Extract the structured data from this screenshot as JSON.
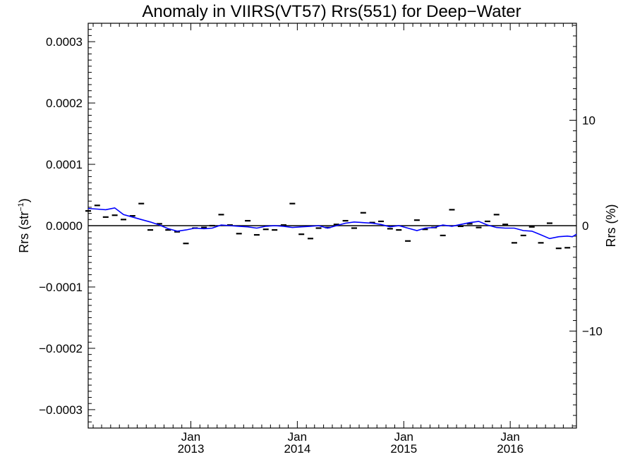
{
  "chart_data": {
    "type": "scatter",
    "title": "Anomaly in VIIRS(VT57) Rrs(551) for Deep−Water",
    "ylabel_left": "Rrs (str",
    "ylabel_left_sup": "−1",
    "ylabel_left_close": ")",
    "ylabel_right": "Rrs (%)",
    "ylim_left": [
      -0.00033,
      0.00033
    ],
    "ylim_right": [
      -19.2,
      19.2
    ],
    "xlim": [
      "2012-01-15",
      "2016-08-15"
    ],
    "left_ticks": [
      {
        "value": 0.0003,
        "label": "0.0003"
      },
      {
        "value": 0.0002,
        "label": "0.0002"
      },
      {
        "value": 0.0001,
        "label": "0.0001"
      },
      {
        "value": 0.0,
        "label": "0.0000"
      },
      {
        "value": -0.0001,
        "label": "−0.0001"
      },
      {
        "value": -0.0002,
        "label": "−0.0002"
      },
      {
        "value": -0.0003,
        "label": "−0.0003"
      }
    ],
    "right_ticks": [
      {
        "value": 10,
        "label": "10"
      },
      {
        "value": 0,
        "label": "0"
      },
      {
        "value": -10,
        "label": "−10"
      }
    ],
    "x_ticks": [
      {
        "date": "2013-01-01",
        "month": "Jan",
        "year": "2013"
      },
      {
        "date": "2014-01-01",
        "month": "Jan",
        "year": "2014"
      },
      {
        "date": "2015-01-01",
        "month": "Jan",
        "year": "2015"
      },
      {
        "date": "2016-01-01",
        "month": "Jan",
        "year": "2016"
      }
    ],
    "zero_line": 0,
    "colors": {
      "points": "#000000",
      "trend": "#0000ff",
      "axes": "#000000"
    },
    "points": [
      {
        "x": "2012-01-15",
        "y": 2.4e-05
      },
      {
        "x": "2012-02-15",
        "y": 3.3e-05
      },
      {
        "x": "2012-03-15",
        "y": 1.4e-05
      },
      {
        "x": "2012-04-15",
        "y": 1.7e-05
      },
      {
        "x": "2012-05-15",
        "y": 1e-05
      },
      {
        "x": "2012-06-15",
        "y": 1.6e-05
      },
      {
        "x": "2012-07-15",
        "y": 3.6e-05
      },
      {
        "x": "2012-08-15",
        "y": -7e-06
      },
      {
        "x": "2012-09-15",
        "y": 3e-06
      },
      {
        "x": "2012-10-15",
        "y": -7e-06
      },
      {
        "x": "2012-11-15",
        "y": -1e-05
      },
      {
        "x": "2012-12-15",
        "y": -2.9e-05
      },
      {
        "x": "2013-01-15",
        "y": -4e-06
      },
      {
        "x": "2013-02-15",
        "y": -3e-06
      },
      {
        "x": "2013-03-15",
        "y": 0.0
      },
      {
        "x": "2013-04-15",
        "y": 1.8e-05
      },
      {
        "x": "2013-05-15",
        "y": 1e-06
      },
      {
        "x": "2013-06-15",
        "y": -1.3e-05
      },
      {
        "x": "2013-07-15",
        "y": 8e-06
      },
      {
        "x": "2013-08-15",
        "y": -1.5e-05
      },
      {
        "x": "2013-09-15",
        "y": -6e-06
      },
      {
        "x": "2013-10-15",
        "y": -7e-06
      },
      {
        "x": "2013-11-15",
        "y": 1e-06
      },
      {
        "x": "2013-12-15",
        "y": 3.6e-05
      },
      {
        "x": "2014-01-15",
        "y": -1.4e-05
      },
      {
        "x": "2014-02-15",
        "y": -2.1e-05
      },
      {
        "x": "2014-03-15",
        "y": -4e-06
      },
      {
        "x": "2014-04-15",
        "y": -3e-06
      },
      {
        "x": "2014-05-15",
        "y": 2e-06
      },
      {
        "x": "2014-06-15",
        "y": 8e-06
      },
      {
        "x": "2014-07-15",
        "y": -4e-06
      },
      {
        "x": "2014-08-15",
        "y": 2.1e-05
      },
      {
        "x": "2014-09-15",
        "y": 5e-06
      },
      {
        "x": "2014-10-15",
        "y": 7e-06
      },
      {
        "x": "2014-11-15",
        "y": -5e-06
      },
      {
        "x": "2014-12-15",
        "y": -7e-06
      },
      {
        "x": "2015-01-15",
        "y": -2.5e-05
      },
      {
        "x": "2015-02-15",
        "y": 9e-06
      },
      {
        "x": "2015-03-15",
        "y": -6e-06
      },
      {
        "x": "2015-04-15",
        "y": -3e-06
      },
      {
        "x": "2015-05-15",
        "y": -1.6e-05
      },
      {
        "x": "2015-06-15",
        "y": 2.6e-05
      },
      {
        "x": "2015-07-15",
        "y": -1e-06
      },
      {
        "x": "2015-08-15",
        "y": 3e-06
      },
      {
        "x": "2015-09-15",
        "y": -3e-06
      },
      {
        "x": "2015-10-15",
        "y": 7e-06
      },
      {
        "x": "2015-11-15",
        "y": 1.8e-05
      },
      {
        "x": "2015-12-15",
        "y": 2e-06
      },
      {
        "x": "2016-01-15",
        "y": -2.8e-05
      },
      {
        "x": "2016-02-15",
        "y": -1.6e-05
      },
      {
        "x": "2016-03-15",
        "y": -2e-06
      },
      {
        "x": "2016-04-15",
        "y": -2.8e-05
      },
      {
        "x": "2016-05-15",
        "y": 4e-06
      },
      {
        "x": "2016-06-15",
        "y": -3.7e-05
      },
      {
        "x": "2016-07-15",
        "y": -3.6e-05
      }
    ],
    "trend": [
      {
        "x": "2012-01-15",
        "y": 2.8e-05
      },
      {
        "x": "2012-02-15",
        "y": 2.7e-05
      },
      {
        "x": "2012-03-15",
        "y": 2.6e-05
      },
      {
        "x": "2012-04-15",
        "y": 2.9e-05
      },
      {
        "x": "2012-05-15",
        "y": 1.8e-05
      },
      {
        "x": "2012-06-15",
        "y": 1.4e-05
      },
      {
        "x": "2012-07-15",
        "y": 1e-05
      },
      {
        "x": "2012-08-15",
        "y": 6e-06
      },
      {
        "x": "2012-09-15",
        "y": 1e-06
      },
      {
        "x": "2012-10-15",
        "y": -5e-06
      },
      {
        "x": "2012-11-15",
        "y": -9e-06
      },
      {
        "x": "2012-12-15",
        "y": -7e-06
      },
      {
        "x": "2013-01-15",
        "y": -4e-06
      },
      {
        "x": "2013-02-15",
        "y": -5e-06
      },
      {
        "x": "2013-03-15",
        "y": -4e-06
      },
      {
        "x": "2013-04-15",
        "y": 1e-06
      },
      {
        "x": "2013-05-15",
        "y": 0.0
      },
      {
        "x": "2013-06-15",
        "y": -1e-06
      },
      {
        "x": "2013-07-15",
        "y": -2e-06
      },
      {
        "x": "2013-08-15",
        "y": -4e-06
      },
      {
        "x": "2013-09-15",
        "y": -1e-06
      },
      {
        "x": "2013-10-15",
        "y": 0.0
      },
      {
        "x": "2013-11-15",
        "y": -1e-06
      },
      {
        "x": "2013-12-15",
        "y": -3e-06
      },
      {
        "x": "2014-01-15",
        "y": -2e-06
      },
      {
        "x": "2014-02-15",
        "y": -1e-06
      },
      {
        "x": "2014-03-15",
        "y": 0.0
      },
      {
        "x": "2014-04-15",
        "y": -4e-06
      },
      {
        "x": "2014-05-15",
        "y": 0.0
      },
      {
        "x": "2014-06-15",
        "y": 4e-06
      },
      {
        "x": "2014-07-15",
        "y": 6e-06
      },
      {
        "x": "2014-08-15",
        "y": 5e-06
      },
      {
        "x": "2014-09-15",
        "y": 4e-06
      },
      {
        "x": "2014-10-15",
        "y": 2e-06
      },
      {
        "x": "2014-11-15",
        "y": -2e-06
      },
      {
        "x": "2014-12-15",
        "y": 0.0
      },
      {
        "x": "2015-01-15",
        "y": -4e-06
      },
      {
        "x": "2015-02-15",
        "y": -8e-06
      },
      {
        "x": "2015-03-15",
        "y": -4e-06
      },
      {
        "x": "2015-04-15",
        "y": -3e-06
      },
      {
        "x": "2015-05-15",
        "y": 1e-06
      },
      {
        "x": "2015-06-15",
        "y": -1e-06
      },
      {
        "x": "2015-07-15",
        "y": 2e-06
      },
      {
        "x": "2015-08-15",
        "y": 5e-06
      },
      {
        "x": "2015-09-15",
        "y": 7e-06
      },
      {
        "x": "2015-10-15",
        "y": 1e-06
      },
      {
        "x": "2015-11-15",
        "y": -3e-06
      },
      {
        "x": "2015-12-15",
        "y": -4e-06
      },
      {
        "x": "2016-01-15",
        "y": -4e-06
      },
      {
        "x": "2016-02-15",
        "y": -8e-06
      },
      {
        "x": "2016-03-15",
        "y": -9e-06
      },
      {
        "x": "2016-04-15",
        "y": -1.5e-05
      },
      {
        "x": "2016-05-15",
        "y": -2.1e-05
      },
      {
        "x": "2016-06-15",
        "y": -1.8e-05
      },
      {
        "x": "2016-07-15",
        "y": -1.7e-05
      },
      {
        "x": "2016-08-01",
        "y": -1.8e-05
      },
      {
        "x": "2016-08-15",
        "y": -1.4e-05
      }
    ]
  }
}
